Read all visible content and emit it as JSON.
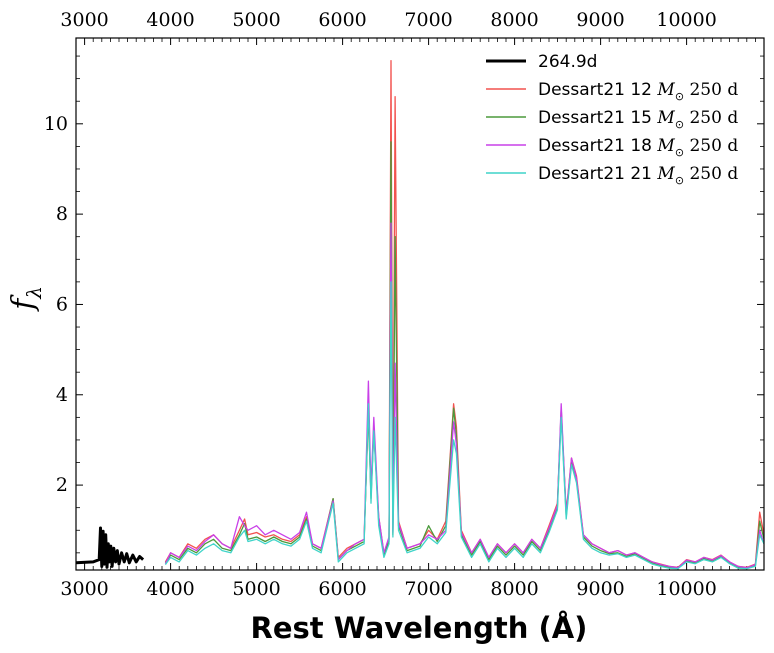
{
  "chart_data": {
    "type": "line",
    "title": "",
    "xlabel": "Rest Wavelength (Å)",
    "ylabel": "f_λ",
    "ylabel_display": "f",
    "ylabel_sub": "λ",
    "xlim": [
      2900,
      10900
    ],
    "ylim": [
      0.12,
      11.9
    ],
    "xticks": [
      3000,
      4000,
      5000,
      6000,
      7000,
      8000,
      9000,
      10000
    ],
    "xtick_labels": [
      "3000",
      "4000",
      "5000",
      "6000",
      "7000",
      "8000",
      "9000",
      "10000"
    ],
    "yticks": [
      2,
      4,
      6,
      8,
      10
    ],
    "ytick_labels": [
      "2",
      "4",
      "6",
      "8",
      "10"
    ],
    "legend_position": "top-right",
    "series": [
      {
        "name": "264.9d",
        "label": "264.9d",
        "color": "#000000",
        "x": [
          2900,
          3100,
          3170,
          3185,
          3200,
          3215,
          3230,
          3245,
          3260,
          3275,
          3290,
          3305,
          3320,
          3340,
          3360,
          3380,
          3400,
          3430,
          3460,
          3490,
          3520,
          3560,
          3600,
          3640,
          3680
        ],
        "y": [
          0.28,
          0.3,
          0.35,
          1.05,
          0.2,
          0.98,
          0.25,
          0.9,
          0.18,
          0.7,
          0.3,
          0.65,
          0.2,
          0.6,
          0.3,
          0.55,
          0.25,
          0.5,
          0.3,
          0.48,
          0.28,
          0.45,
          0.3,
          0.42,
          0.35
        ]
      },
      {
        "name": "Dessart21 12 M☉ 250 d",
        "label_prefix": "Dessart21 12 ",
        "label_math": "M",
        "label_sub": "⊙",
        "label_suffix": " 250 d",
        "color": "#f2524f",
        "x": [
          3940,
          4000,
          4100,
          4200,
          4300,
          4400,
          4500,
          4600,
          4700,
          4800,
          4860,
          4900,
          5000,
          5100,
          5200,
          5300,
          5400,
          5500,
          5580,
          5650,
          5750,
          5890,
          5950,
          6050,
          6150,
          6250,
          6300,
          6330,
          6363,
          6420,
          6480,
          6540,
          6563,
          6585,
          6610,
          6650,
          6750,
          6900,
          7000,
          7100,
          7200,
          7291,
          7323,
          7380,
          7500,
          7600,
          7700,
          7800,
          7900,
          8000,
          8100,
          8200,
          8300,
          8400,
          8498,
          8542,
          8600,
          8662,
          8720,
          8800,
          8900,
          9000,
          9100,
          9200,
          9300,
          9400,
          9500,
          9600,
          9700,
          9800,
          9900,
          10000,
          10100,
          10200,
          10300,
          10400,
          10500,
          10600,
          10700,
          10800,
          10850,
          10900
        ],
        "y": [
          0.3,
          0.5,
          0.4,
          0.7,
          0.6,
          0.8,
          0.9,
          0.7,
          0.6,
          1.0,
          1.25,
          0.9,
          0.95,
          0.85,
          0.9,
          0.8,
          0.75,
          0.9,
          1.3,
          0.7,
          0.6,
          1.7,
          0.4,
          0.6,
          0.7,
          0.8,
          3.6,
          1.8,
          3.2,
          1.3,
          0.5,
          0.8,
          11.4,
          1.0,
          10.6,
          1.2,
          0.6,
          0.7,
          1.0,
          0.8,
          1.2,
          3.8,
          3.3,
          1.0,
          0.5,
          0.8,
          0.4,
          0.7,
          0.5,
          0.7,
          0.5,
          0.8,
          0.6,
          1.1,
          1.6,
          3.6,
          1.4,
          2.6,
          2.2,
          0.9,
          0.7,
          0.6,
          0.5,
          0.55,
          0.45,
          0.5,
          0.4,
          0.3,
          0.25,
          0.2,
          0.18,
          0.35,
          0.3,
          0.4,
          0.35,
          0.45,
          0.3,
          0.2,
          0.18,
          0.25,
          1.4,
          0.9
        ]
      },
      {
        "name": "Dessart21 15 M☉ 250 d",
        "label_prefix": "Dessart21 15 ",
        "label_math": "M",
        "label_sub": "⊙",
        "label_suffix": " 250 d",
        "color": "#4b9a3c",
        "x": [
          3940,
          4000,
          4100,
          4200,
          4300,
          4400,
          4500,
          4600,
          4700,
          4800,
          4860,
          4900,
          5000,
          5100,
          5200,
          5300,
          5400,
          5500,
          5580,
          5650,
          5750,
          5890,
          5950,
          6050,
          6150,
          6250,
          6300,
          6330,
          6363,
          6420,
          6480,
          6540,
          6563,
          6585,
          6610,
          6650,
          6750,
          6900,
          7000,
          7100,
          7200,
          7291,
          7323,
          7380,
          7500,
          7600,
          7700,
          7800,
          7900,
          8000,
          8100,
          8200,
          8300,
          8400,
          8498,
          8542,
          8600,
          8662,
          8720,
          8800,
          8900,
          9000,
          9100,
          9200,
          9300,
          9400,
          9500,
          9600,
          9700,
          9800,
          9900,
          10000,
          10100,
          10200,
          10300,
          10400,
          10500,
          10600,
          10700,
          10800,
          10850,
          10900
        ],
        "y": [
          0.28,
          0.45,
          0.35,
          0.6,
          0.5,
          0.7,
          0.8,
          0.6,
          0.55,
          0.9,
          1.15,
          0.8,
          0.85,
          0.75,
          0.85,
          0.75,
          0.7,
          0.85,
          1.25,
          0.65,
          0.55,
          1.7,
          0.35,
          0.55,
          0.65,
          0.75,
          3.7,
          1.7,
          3.3,
          1.2,
          0.45,
          0.75,
          9.6,
          0.9,
          7.5,
          1.1,
          0.55,
          0.65,
          1.1,
          0.75,
          1.1,
          3.7,
          3.1,
          0.9,
          0.45,
          0.75,
          0.35,
          0.65,
          0.45,
          0.65,
          0.45,
          0.75,
          0.55,
          1.0,
          1.5,
          3.7,
          1.3,
          2.5,
          2.1,
          0.85,
          0.65,
          0.55,
          0.48,
          0.5,
          0.42,
          0.48,
          0.38,
          0.28,
          0.22,
          0.18,
          0.16,
          0.32,
          0.28,
          0.38,
          0.32,
          0.42,
          0.28,
          0.18,
          0.16,
          0.22,
          1.2,
          0.8
        ]
      },
      {
        "name": "Dessart21 18 M☉ 250 d",
        "label_prefix": "Dessart21 18 ",
        "label_math": "M",
        "label_sub": "⊙",
        "label_suffix": " 250 d",
        "color": "#c940e8",
        "x": [
          3940,
          4000,
          4100,
          4200,
          4300,
          4400,
          4500,
          4600,
          4700,
          4800,
          4860,
          4900,
          5000,
          5100,
          5200,
          5300,
          5400,
          5500,
          5580,
          5650,
          5750,
          5890,
          5950,
          6050,
          6150,
          6250,
          6300,
          6330,
          6363,
          6420,
          6480,
          6540,
          6563,
          6585,
          6610,
          6650,
          6750,
          6900,
          7000,
          7100,
          7200,
          7291,
          7323,
          7380,
          7500,
          7600,
          7700,
          7800,
          7900,
          8000,
          8100,
          8200,
          8300,
          8400,
          8498,
          8542,
          8600,
          8662,
          8720,
          8800,
          8900,
          9000,
          9100,
          9200,
          9300,
          9400,
          9500,
          9600,
          9700,
          9800,
          9900,
          10000,
          10100,
          10200,
          10300,
          10400,
          10500,
          10600,
          10700,
          10800,
          10850,
          10900
        ],
        "y": [
          0.26,
          0.5,
          0.4,
          0.65,
          0.55,
          0.75,
          0.9,
          0.7,
          0.6,
          1.3,
          1.1,
          1.0,
          1.1,
          0.9,
          1.0,
          0.9,
          0.8,
          0.95,
          1.4,
          0.7,
          0.6,
          1.65,
          0.35,
          0.55,
          0.7,
          0.8,
          4.3,
          1.9,
          3.5,
          1.3,
          0.5,
          0.85,
          7.8,
          0.95,
          4.7,
          1.15,
          0.6,
          0.7,
          0.9,
          0.8,
          1.0,
          3.4,
          2.9,
          0.95,
          0.5,
          0.8,
          0.4,
          0.7,
          0.5,
          0.7,
          0.5,
          0.8,
          0.6,
          1.05,
          1.55,
          3.8,
          1.35,
          2.6,
          2.15,
          0.9,
          0.7,
          0.6,
          0.5,
          0.55,
          0.45,
          0.5,
          0.4,
          0.3,
          0.24,
          0.2,
          0.17,
          0.34,
          0.3,
          0.4,
          0.34,
          0.44,
          0.3,
          0.2,
          0.17,
          0.24,
          1.0,
          0.7
        ]
      },
      {
        "name": "Dessart21 21 M☉ 250 d",
        "label_prefix": "Dessart21 21 ",
        "label_math": "M",
        "label_sub": "⊙",
        "label_suffix": " 250 d",
        "color": "#3fd4c9",
        "x": [
          3940,
          4000,
          4100,
          4200,
          4300,
          4400,
          4500,
          4600,
          4700,
          4800,
          4860,
          4900,
          5000,
          5100,
          5200,
          5300,
          5400,
          5500,
          5580,
          5650,
          5750,
          5890,
          5950,
          6050,
          6150,
          6250,
          6300,
          6330,
          6363,
          6420,
          6480,
          6540,
          6563,
          6585,
          6610,
          6650,
          6750,
          6900,
          7000,
          7100,
          7200,
          7291,
          7323,
          7380,
          7500,
          7600,
          7700,
          7800,
          7900,
          8000,
          8100,
          8200,
          8300,
          8400,
          8498,
          8542,
          8600,
          8662,
          8720,
          8800,
          8900,
          9000,
          9100,
          9200,
          9300,
          9400,
          9500,
          9600,
          9700,
          9800,
          9900,
          10000,
          10100,
          10200,
          10300,
          10400,
          10500,
          10600,
          10700,
          10800,
          10850,
          10900
        ],
        "y": [
          0.24,
          0.4,
          0.3,
          0.55,
          0.45,
          0.6,
          0.7,
          0.55,
          0.5,
          0.85,
          1.0,
          0.75,
          0.8,
          0.7,
          0.8,
          0.7,
          0.65,
          0.8,
          1.2,
          0.6,
          0.5,
          1.6,
          0.3,
          0.5,
          0.6,
          0.7,
          3.8,
          1.6,
          3.2,
          1.1,
          0.4,
          0.7,
          6.5,
          0.85,
          3.5,
          1.0,
          0.5,
          0.6,
          0.85,
          0.7,
          0.95,
          3.0,
          2.7,
          0.85,
          0.4,
          0.7,
          0.3,
          0.6,
          0.4,
          0.6,
          0.4,
          0.7,
          0.5,
          0.95,
          1.45,
          3.5,
          1.25,
          2.45,
          2.05,
          0.8,
          0.6,
          0.5,
          0.45,
          0.48,
          0.4,
          0.45,
          0.35,
          0.25,
          0.2,
          0.16,
          0.15,
          0.3,
          0.26,
          0.35,
          0.3,
          0.4,
          0.26,
          0.16,
          0.15,
          0.2,
          0.9,
          0.7
        ]
      }
    ]
  }
}
